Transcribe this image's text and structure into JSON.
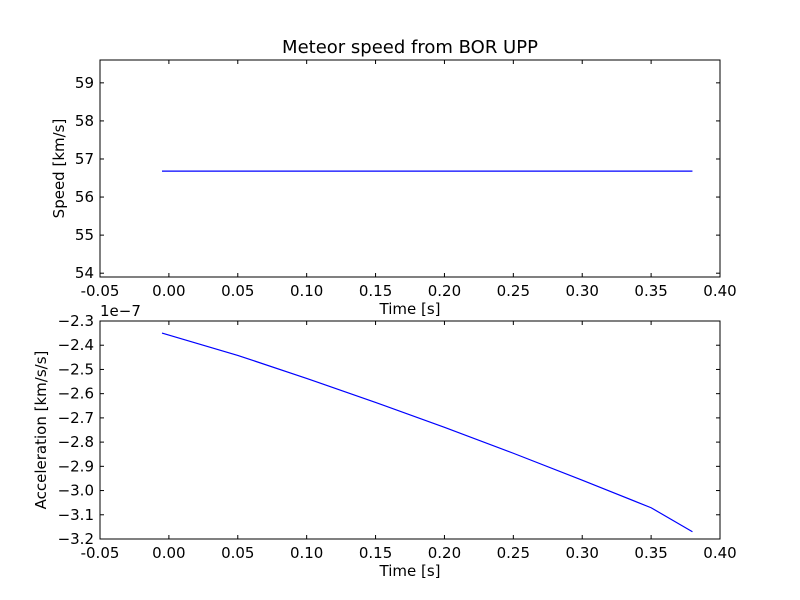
{
  "chart_data": [
    {
      "type": "line",
      "title": "Meteor speed from  BOR UPP",
      "xlabel": "Time [s]",
      "ylabel": "Speed [km/s]",
      "xlim": [
        -0.05,
        0.4
      ],
      "ylim": [
        53.9,
        59.6
      ],
      "x_ticks": [
        "-0.05",
        "0.00",
        "0.05",
        "0.10",
        "0.15",
        "0.20",
        "0.25",
        "0.30",
        "0.35",
        "0.40"
      ],
      "y_ticks": [
        "54",
        "55",
        "56",
        "57",
        "58",
        "59"
      ],
      "grid": false,
      "series": [
        {
          "color": "#0000ff",
          "x": [
            -0.005,
            0.38
          ],
          "y": [
            56.68,
            56.68
          ]
        }
      ]
    },
    {
      "type": "line",
      "title": "",
      "xlabel": "Time [s]",
      "ylabel": "Acceleration [km/s/s]",
      "offset_label": "1e−7",
      "xlim": [
        -0.05,
        0.4
      ],
      "ylim": [
        -3.2,
        -2.3
      ],
      "x_ticks": [
        "-0.05",
        "0.00",
        "0.05",
        "0.10",
        "0.15",
        "0.20",
        "0.25",
        "0.30",
        "0.35",
        "0.40"
      ],
      "y_ticks": [
        "−2.3",
        "−2.4",
        "−2.5",
        "−2.6",
        "−2.7",
        "−2.8",
        "−2.9",
        "−3.0",
        "−3.1",
        "−3.2"
      ],
      "grid": false,
      "series": [
        {
          "color": "#0000ff",
          "x": [
            -0.005,
            0.05,
            0.1,
            0.15,
            0.2,
            0.25,
            0.3,
            0.35,
            0.38
          ],
          "y": [
            -2.35,
            -2.442,
            -2.537,
            -2.636,
            -2.739,
            -2.846,
            -2.957,
            -3.071,
            -3.17
          ]
        }
      ]
    }
  ]
}
